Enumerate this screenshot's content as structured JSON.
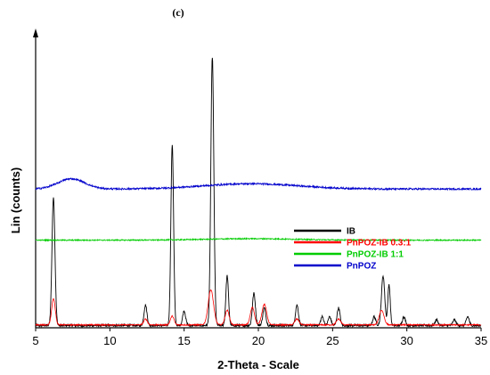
{
  "chart_data": {
    "type": "line",
    "panel_label": "(c)",
    "xlabel": "2-Theta - Scale",
    "ylabel": "Lin (counts)",
    "xlim": [
      5,
      35
    ],
    "xticks": [
      5,
      10,
      15,
      20,
      25,
      30,
      35
    ],
    "ylim": [
      0,
      1000
    ],
    "grid": false,
    "legend_position": "top-right",
    "series": [
      {
        "name": "IB",
        "color": "#000000",
        "baseline": 8,
        "noise": 4,
        "peaks": [
          [
            6.2,
            440,
            0.1
          ],
          [
            12.4,
            70,
            0.1
          ],
          [
            14.2,
            620,
            0.09
          ],
          [
            15.0,
            50,
            0.1
          ],
          [
            16.9,
            920,
            0.1
          ],
          [
            17.9,
            170,
            0.09
          ],
          [
            19.7,
            110,
            0.1
          ],
          [
            20.4,
            60,
            0.1
          ],
          [
            22.6,
            70,
            0.1
          ],
          [
            24.3,
            30,
            0.1
          ],
          [
            24.8,
            30,
            0.1
          ],
          [
            25.4,
            60,
            0.1
          ],
          [
            27.8,
            30,
            0.1
          ],
          [
            28.4,
            170,
            0.11
          ],
          [
            28.8,
            140,
            0.08
          ],
          [
            29.8,
            30,
            0.1
          ],
          [
            32.0,
            20,
            0.1
          ],
          [
            33.2,
            20,
            0.1
          ],
          [
            34.1,
            30,
            0.1
          ]
        ]
      },
      {
        "name": "PnPOZ-IB 0.3:1",
        "color": "#ff0000",
        "baseline": 10,
        "noise": 2,
        "peaks": [
          [
            6.2,
            90,
            0.12
          ],
          [
            12.4,
            20,
            0.12
          ],
          [
            14.2,
            30,
            0.12
          ],
          [
            16.8,
            120,
            0.18
          ],
          [
            17.9,
            50,
            0.14
          ],
          [
            19.6,
            60,
            0.14
          ],
          [
            20.4,
            70,
            0.16
          ],
          [
            22.6,
            20,
            0.14
          ],
          [
            25.4,
            20,
            0.14
          ],
          [
            28.3,
            50,
            0.16
          ]
        ]
      },
      {
        "name": "PnPOZ-IB 1:1",
        "color": "#00cc00",
        "baseline": 300,
        "noise": 2,
        "bumps": [
          [
            19.5,
            5,
            3
          ]
        ]
      },
      {
        "name": "PnPOZ",
        "color": "#0000cc",
        "baseline": 475,
        "noise": 3,
        "bumps": [
          [
            7.4,
            35,
            0.9
          ],
          [
            19.5,
            18,
            3.2
          ]
        ]
      }
    ]
  }
}
